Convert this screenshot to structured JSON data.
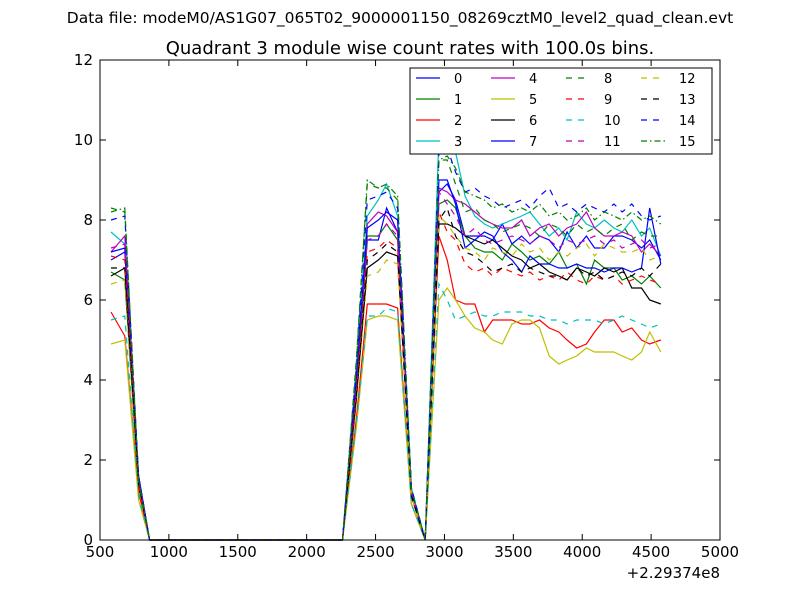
{
  "figure": {
    "suptitle": "Data file: modeM0/AS1G07_065T02_9000001150_08269cztM0_level2_quad_clean.evt"
  },
  "chart_data": {
    "type": "line",
    "title": "Quadrant 3 module wise count rates with 100.0s bins.",
    "xlabel": "",
    "ylabel": "",
    "x_offset_label": "+2.29374e8",
    "xlim": [
      500,
      5000
    ],
    "ylim": [
      0,
      12
    ],
    "xticks": [
      500,
      1000,
      1500,
      2000,
      2500,
      3000,
      3500,
      4000,
      4500,
      5000
    ],
    "yticks": [
      0,
      2,
      4,
      6,
      8,
      10,
      12
    ],
    "grid": false,
    "legend": {
      "placement": "top-right",
      "columns": 4
    },
    "x": [
      580,
      680,
      780,
      860,
      960,
      1060,
      1160,
      1260,
      1360,
      1460,
      1560,
      1660,
      1760,
      1860,
      1960,
      2060,
      2160,
      2260,
      2360,
      2440,
      2520,
      2580,
      2660,
      2760,
      2860,
      2960,
      3020,
      3080,
      3150,
      3220,
      3290,
      3350,
      3420,
      3490,
      3560,
      3620,
      3690,
      3760,
      3830,
      3890,
      3960,
      4030,
      4090,
      4160,
      4230,
      4290,
      4360,
      4430,
      4490,
      4570
    ],
    "series": [
      {
        "name": "0",
        "color": "#0000ff",
        "dash": "solid",
        "values": [
          7.0,
          7.2,
          1.6,
          0,
          0,
          0,
          0,
          0,
          0,
          0,
          0,
          0,
          0,
          0,
          0,
          0,
          0,
          0,
          3.8,
          7.5,
          7.5,
          8.3,
          7.7,
          1.2,
          0,
          8.7,
          8.9,
          8.5,
          7.6,
          7.6,
          7.6,
          7.5,
          7.9,
          7.4,
          7.6,
          7.4,
          7.6,
          7.5,
          7.2,
          7.7,
          7.3,
          7.6,
          7.3,
          7.3,
          7.6,
          7.6,
          7.5,
          7.3,
          7.5,
          7.0
        ]
      },
      {
        "name": "1",
        "color": "#008000",
        "dash": "solid",
        "values": [
          6.7,
          6.5,
          1.3,
          0,
          0,
          0,
          0,
          0,
          0,
          0,
          0,
          0,
          0,
          0,
          0,
          0,
          0,
          0,
          3.6,
          7.6,
          7.6,
          7.9,
          7.5,
          1.1,
          0,
          8.4,
          8.5,
          8.3,
          7.6,
          7.3,
          7.2,
          7.2,
          7.0,
          7.4,
          7.2,
          7.0,
          7.1,
          6.9,
          7.2,
          6.8,
          6.9,
          6.4,
          7.0,
          6.8,
          6.8,
          6.5,
          6.6,
          6.4,
          6.6,
          6.3
        ]
      },
      {
        "name": "2",
        "color": "#ff0000",
        "dash": "solid",
        "values": [
          5.7,
          5.1,
          1.2,
          0,
          0,
          0,
          0,
          0,
          0,
          0,
          0,
          0,
          0,
          0,
          0,
          0,
          0,
          0,
          3.0,
          5.9,
          5.9,
          5.9,
          5.8,
          0.9,
          0,
          7.6,
          7.0,
          6.0,
          5.9,
          5.9,
          5.2,
          5.5,
          5.5,
          5.5,
          5.4,
          5.4,
          5.5,
          5.3,
          5.2,
          5.0,
          4.8,
          4.9,
          5.2,
          5.5,
          5.5,
          5.2,
          5.3,
          5.0,
          4.9,
          5.0
        ]
      },
      {
        "name": "3",
        "color": "#00bfbf",
        "dash": "solid",
        "values": [
          7.7,
          7.4,
          1.5,
          0,
          0,
          0,
          0,
          0,
          0,
          0,
          0,
          0,
          0,
          0,
          0,
          0,
          0,
          0,
          4.3,
          8.1,
          8.5,
          8.9,
          8.1,
          1.3,
          0,
          10.1,
          10.1,
          9.7,
          8.6,
          8.1,
          7.9,
          7.8,
          7.9,
          8.0,
          8.1,
          8.2,
          7.9,
          7.6,
          7.8,
          7.5,
          8.2,
          7.9,
          7.8,
          8.0,
          7.8,
          7.7,
          8.0,
          7.6,
          7.8,
          7.1
        ]
      },
      {
        "name": "4",
        "color": "#bf00bf",
        "dash": "solid",
        "values": [
          7.2,
          7.6,
          1.5,
          0,
          0,
          0,
          0,
          0,
          0,
          0,
          0,
          0,
          0,
          0,
          0,
          0,
          0,
          0,
          3.9,
          7.9,
          8.2,
          8.1,
          7.7,
          1.2,
          0,
          8.8,
          8.7,
          8.5,
          8.4,
          8.2,
          8.0,
          7.9,
          7.8,
          7.8,
          8.0,
          7.6,
          7.8,
          7.9,
          7.6,
          7.8,
          7.9,
          8.2,
          7.8,
          7.6,
          7.6,
          7.7,
          7.6,
          7.2,
          7.4,
          7.1
        ]
      },
      {
        "name": "5",
        "color": "#bfbf00",
        "dash": "solid",
        "values": [
          4.9,
          5.0,
          1.0,
          0,
          0,
          0,
          0,
          0,
          0,
          0,
          0,
          0,
          0,
          0,
          0,
          0,
          0,
          0,
          2.8,
          5.5,
          5.6,
          5.6,
          5.5,
          0.9,
          0,
          6.0,
          6.3,
          6.0,
          5.6,
          5.3,
          5.2,
          5.0,
          4.9,
          5.4,
          5.5,
          5.5,
          5.3,
          4.6,
          4.4,
          4.5,
          4.6,
          4.8,
          4.7,
          4.7,
          4.7,
          4.6,
          4.5,
          4.7,
          5.2,
          4.7
        ]
      },
      {
        "name": "6",
        "color": "#000000",
        "dash": "solid",
        "values": [
          6.6,
          6.8,
          1.4,
          0,
          0,
          0,
          0,
          0,
          0,
          0,
          0,
          0,
          0,
          0,
          0,
          0,
          0,
          0,
          3.5,
          6.8,
          7.0,
          7.2,
          7.1,
          1.1,
          0,
          7.9,
          7.9,
          7.8,
          7.6,
          7.5,
          7.4,
          7.5,
          7.3,
          7.1,
          7.0,
          6.8,
          6.9,
          6.7,
          6.6,
          6.5,
          6.8,
          6.7,
          6.6,
          6.8,
          6.7,
          6.8,
          6.3,
          6.3,
          6.0,
          5.9
        ]
      },
      {
        "name": "7",
        "color": "#0000ff",
        "dash": "solid",
        "values": [
          7.2,
          7.3,
          1.6,
          0,
          0,
          0,
          0,
          0,
          0,
          0,
          0,
          0,
          0,
          0,
          0,
          0,
          0,
          0,
          4.0,
          7.8,
          8.0,
          8.2,
          8.0,
          1.2,
          0,
          9.0,
          9.0,
          8.4,
          7.3,
          7.5,
          7.7,
          7.6,
          7.2,
          7.0,
          6.7,
          7.1,
          6.9,
          6.9,
          6.8,
          6.8,
          6.9,
          6.8,
          6.8,
          6.7,
          6.8,
          6.8,
          6.7,
          6.8,
          8.3,
          6.9
        ]
      },
      {
        "name": "8",
        "color": "#008000",
        "dash": "dashed",
        "values": [
          8.3,
          8.2,
          1.5,
          0,
          0,
          0,
          0,
          0,
          0,
          0,
          0,
          0,
          0,
          0,
          0,
          0,
          0,
          0,
          4.5,
          8.9,
          8.8,
          8.8,
          8.5,
          1.3,
          0,
          9.5,
          9.5,
          8.9,
          8.2,
          8.3,
          8.0,
          7.9,
          7.7,
          7.8,
          7.9,
          7.8,
          7.6,
          7.9,
          7.8,
          7.6,
          7.9,
          7.7,
          7.8,
          7.6,
          7.8,
          7.9,
          7.5,
          7.7,
          7.6,
          7.6
        ]
      },
      {
        "name": "9",
        "color": "#ff0000",
        "dash": "dashed",
        "values": [
          7.1,
          7.0,
          1.4,
          0,
          0,
          0,
          0,
          0,
          0,
          0,
          0,
          0,
          0,
          0,
          0,
          0,
          0,
          0,
          3.7,
          7.2,
          7.3,
          7.5,
          7.3,
          1.1,
          0,
          8.2,
          7.7,
          7.5,
          6.9,
          6.7,
          6.8,
          6.6,
          6.8,
          6.7,
          6.6,
          6.7,
          6.5,
          6.6,
          6.5,
          6.7,
          6.5,
          6.4,
          6.6,
          6.5,
          6.6,
          6.4,
          6.5,
          6.6,
          6.5,
          6.4
        ]
      },
      {
        "name": "10",
        "color": "#00bfbf",
        "dash": "dashed",
        "values": [
          5.5,
          5.6,
          1.1,
          0,
          0,
          0,
          0,
          0,
          0,
          0,
          0,
          0,
          0,
          0,
          0,
          0,
          0,
          0,
          2.9,
          5.6,
          5.6,
          5.8,
          5.7,
          0.9,
          0,
          6.4,
          6.0,
          5.5,
          5.6,
          5.7,
          5.6,
          5.6,
          5.7,
          5.7,
          5.7,
          5.6,
          5.6,
          5.5,
          5.5,
          5.4,
          5.5,
          5.5,
          5.5,
          5.4,
          5.5,
          5.6,
          5.5,
          5.4,
          5.3,
          5.4
        ]
      },
      {
        "name": "11",
        "color": "#bf00bf",
        "dash": "dashed",
        "values": [
          7.3,
          7.4,
          1.5,
          0,
          0,
          0,
          0,
          0,
          0,
          0,
          0,
          0,
          0,
          0,
          0,
          0,
          0,
          0,
          3.8,
          7.5,
          7.6,
          7.9,
          7.6,
          1.2,
          0,
          8.7,
          8.4,
          8.1,
          7.6,
          7.8,
          7.5,
          7.4,
          7.5,
          7.6,
          7.5,
          7.4,
          7.6,
          7.5,
          7.3,
          7.5,
          7.4,
          7.5,
          7.6,
          7.4,
          7.5,
          7.3,
          7.4,
          7.5,
          7.3,
          7.4
        ]
      },
      {
        "name": "12",
        "color": "#bfbf00",
        "dash": "dashed",
        "values": [
          6.4,
          6.5,
          1.3,
          0,
          0,
          0,
          0,
          0,
          0,
          0,
          0,
          0,
          0,
          0,
          0,
          0,
          0,
          0,
          3.4,
          6.6,
          6.7,
          7.0,
          6.9,
          1.1,
          0,
          8.1,
          7.9,
          7.6,
          7.3,
          7.2,
          7.0,
          7.3,
          7.2,
          7.1,
          7.4,
          7.2,
          7.3,
          7.0,
          7.2,
          7.1,
          7.3,
          7.4,
          7.1,
          7.4,
          7.3,
          7.2,
          7.2,
          7.3,
          7.0,
          7.1
        ]
      },
      {
        "name": "13",
        "color": "#000000",
        "dash": "dashed",
        "values": [
          6.8,
          6.8,
          1.4,
          0,
          0,
          0,
          0,
          0,
          0,
          0,
          0,
          0,
          0,
          0,
          0,
          0,
          0,
          0,
          3.6,
          7.0,
          7.2,
          7.4,
          7.2,
          1.1,
          0,
          8.0,
          8.3,
          7.6,
          7.2,
          7.1,
          6.9,
          6.7,
          6.8,
          6.9,
          6.7,
          6.8,
          6.7,
          6.6,
          6.6,
          6.5,
          6.8,
          6.6,
          6.7,
          6.5,
          6.6,
          6.7,
          6.6,
          6.8,
          6.6,
          6.9
        ]
      },
      {
        "name": "14",
        "color": "#0000ff",
        "dash": "dashed",
        "values": [
          8.0,
          8.1,
          1.6,
          0,
          0,
          0,
          0,
          0,
          0,
          0,
          0,
          0,
          0,
          0,
          0,
          0,
          0,
          0,
          4.3,
          8.5,
          8.6,
          8.7,
          8.3,
          1.3,
          0,
          9.7,
          9.8,
          9.2,
          8.7,
          8.8,
          8.6,
          8.5,
          8.3,
          8.4,
          8.5,
          8.3,
          8.6,
          8.8,
          8.3,
          8.4,
          8.2,
          8.4,
          8.3,
          8.2,
          8.4,
          8.2,
          8.4,
          8.1,
          8.0,
          8.1
        ]
      },
      {
        "name": "15",
        "color": "#008000",
        "dash": "dashdot",
        "values": [
          8.2,
          8.3,
          1.5,
          0,
          0,
          0,
          0,
          0,
          0,
          0,
          0,
          0,
          0,
          0,
          0,
          0,
          0,
          0,
          4.4,
          9.0,
          8.8,
          8.9,
          8.6,
          1.3,
          0,
          9.5,
          9.6,
          9.3,
          8.7,
          8.6,
          8.5,
          8.3,
          8.4,
          8.2,
          8.3,
          8.2,
          8.4,
          8.1,
          8.2,
          8.0,
          8.1,
          8.3,
          8.0,
          8.2,
          8.1,
          8.0,
          8.2,
          8.0,
          8.1,
          7.9
        ]
      }
    ]
  }
}
